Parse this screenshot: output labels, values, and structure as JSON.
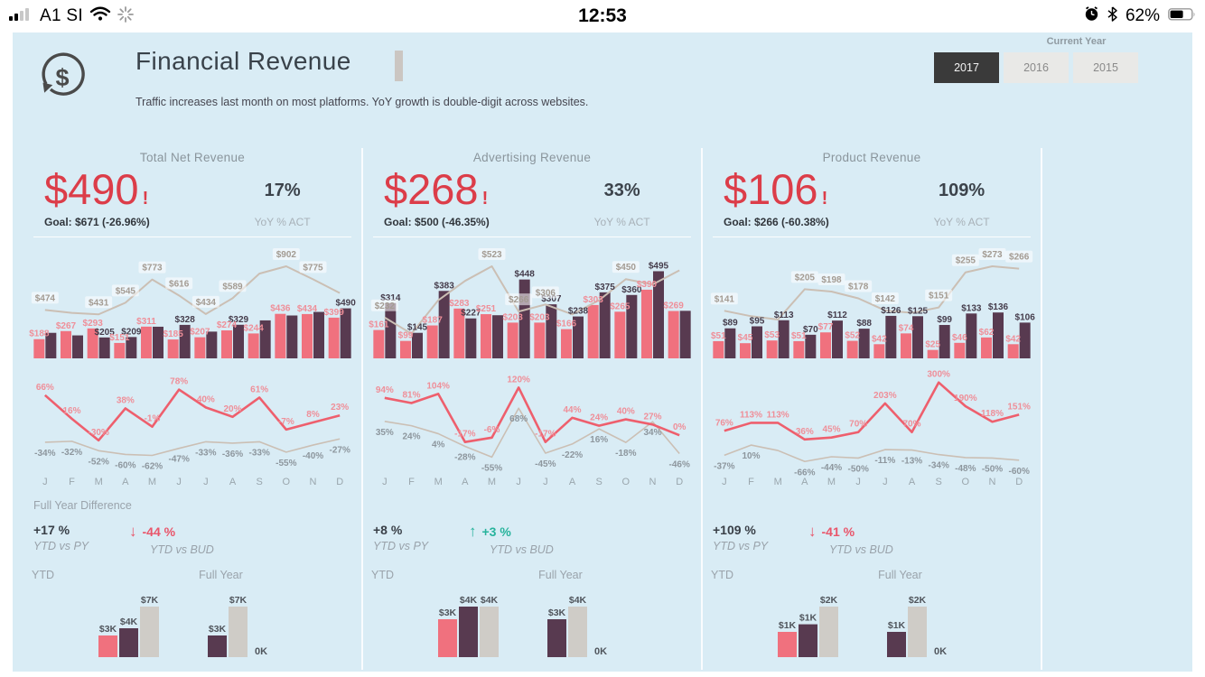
{
  "status_bar": {
    "signal_icon": "signal-bars",
    "carrier": "A1 SI",
    "wifi_icon": "wifi",
    "spinner_icon": "activity-spinner",
    "time": "12:53",
    "alarm_icon": "alarm-clock",
    "bluetooth_icon": "bluetooth",
    "battery_percent": "62%",
    "battery_icon": "battery"
  },
  "header": {
    "logo_icon": "refresh-dollar-icon",
    "title": "Financial Revenue",
    "subtitle": "Traffic increases last month on most platforms. YoY growth is double-digit across websites.",
    "slicer_label": "Current Year",
    "years": [
      "2017",
      "2016",
      "2015"
    ],
    "selected_year": "2017"
  },
  "colors": {
    "background": "#d9ecf5",
    "accent_red": "#dc3d49",
    "pink_bar": "#f0717e",
    "dark_bar": "#583a50",
    "gray_bar": "#cfccc7",
    "tan_line": "#cbbfb4",
    "red_line": "#ee5f6d",
    "pink_label": "#ef8f99",
    "dark_label": "#453c4b",
    "tan_label": "#a39b92",
    "gray_pct_label": "#8d969d",
    "teal": "#27b39c"
  },
  "months": [
    "J",
    "F",
    "M",
    "A",
    "M",
    "J",
    "J",
    "A",
    "S",
    "O",
    "N",
    "D"
  ],
  "chart_data": "see panels[].combo (actual vs prior bars + prior-year line, $) and panels[].pct (YoY % lines)",
  "panels": [
    {
      "title": "Total Net Revenue",
      "kpi": "$490",
      "kpi_alert": "!",
      "goal": "Goal: $671 (-26.96%)",
      "yoy": "17%",
      "yoy_label": "YoY % ACT",
      "combo": {
        "type": "bar+line",
        "pink": {
          "values": [
            188,
            267,
            293,
            151,
            311,
            185,
            207,
            274,
            244,
            436,
            434,
            399
          ],
          "labels": [
            "$188",
            "$267",
            "$293",
            "$151",
            "$311",
            "$185",
            "$207",
            "$274",
            "$244",
            "$436",
            "$434",
            "$399"
          ]
        },
        "dark": {
          "values": [
            250,
            225,
            205,
            209,
            310,
            328,
            262,
            329,
            372,
            420,
            455,
            490
          ],
          "labels": [
            null,
            null,
            "$205",
            "$209",
            null,
            "$328",
            null,
            "$329",
            null,
            null,
            null,
            "$490"
          ]
        },
        "line": {
          "values": [
            474,
            445,
            431,
            545,
            773,
            616,
            434,
            589,
            830,
            902,
            775,
            640
          ],
          "labels": [
            "$474",
            null,
            "$431",
            "$545",
            "$773",
            "$616",
            "$434",
            "$589",
            null,
            "$902",
            "$775",
            null
          ]
        }
      },
      "pct": {
        "type": "line",
        "red": {
          "values": [
            66,
            16,
            -30,
            38,
            -1,
            78,
            40,
            20,
            61,
            -7,
            8,
            23
          ],
          "labels": [
            "66%",
            "16%",
            "-30%",
            "38%",
            "-1%",
            "78%",
            "40%",
            "20%",
            "61%",
            "-7%",
            "8%",
            "23%"
          ]
        },
        "gray": {
          "values": [
            -34,
            -32,
            -52,
            -60,
            -62,
            -47,
            -33,
            -36,
            -33,
            -55,
            -40,
            -27
          ],
          "labels": [
            "-34%",
            "-32%",
            "-52%",
            "-60%",
            "-62%",
            "-47%",
            "-33%",
            "-36%",
            "-33%",
            "-55%",
            "-40%",
            "-27%"
          ]
        }
      },
      "diff_heading": "Full Year Difference",
      "stats": [
        {
          "value": "+17 %",
          "label": "YTD vs PY",
          "arrow": ""
        },
        {
          "value": "-44 %",
          "label": "YTD vs BUD",
          "arrow": "↓"
        }
      ],
      "ytd": {
        "label": "YTD",
        "bars": [
          {
            "color": "pink",
            "value": 3,
            "label": "$3K"
          },
          {
            "color": "dark",
            "value": 4,
            "label": "$4K"
          },
          {
            "color": "gray",
            "value": 7,
            "label": "$7K"
          }
        ]
      },
      "full_year": {
        "label": "Full Year",
        "bars": [
          {
            "color": "dark",
            "value": 3,
            "label": "$3K"
          },
          {
            "color": "gray",
            "value": 7,
            "label": "$7K"
          }
        ],
        "axis_label": "0K"
      }
    },
    {
      "title": "Advertising Revenue",
      "kpi": "$268",
      "kpi_alert": "!",
      "goal": "Goal: $500 (-46.35%)",
      "yoy": "33%",
      "yoy_label": "YoY % ACT",
      "combo": {
        "type": "bar+line",
        "pink": {
          "values": [
            161,
            99,
            187,
            283,
            251,
            203,
            203,
            166,
            303,
            265,
            390,
            269
          ],
          "labels": [
            "$161",
            "$99",
            "$187",
            "$283",
            "$251",
            "$203",
            "$203",
            "$166",
            "$303",
            "$265",
            "$390",
            "$269"
          ]
        },
        "dark": {
          "values": [
            314,
            145,
            383,
            227,
            245,
            448,
            307,
            238,
            375,
            360,
            495,
            270
          ],
          "labels": [
            "$314",
            "$145",
            "$383",
            "$227",
            null,
            "$448",
            "$307",
            "$238",
            "$375",
            "$360",
            "$495",
            null
          ]
        },
        "line": {
          "values": [
            232,
            140,
            330,
            440,
            523,
            266,
            306,
            250,
            330,
            450,
            420,
            500
          ],
          "labels": [
            "$232",
            null,
            null,
            null,
            "$523",
            "$266",
            "$306",
            null,
            null,
            "$450",
            null,
            null
          ]
        }
      },
      "pct": {
        "type": "line",
        "red": {
          "values": [
            94,
            81,
            104,
            -17,
            -6,
            120,
            -17,
            44,
            24,
            40,
            27,
            0
          ],
          "labels": [
            "94%",
            "81%",
            "104%",
            "-17%",
            "-6%",
            "120%",
            "-17%",
            "44%",
            "24%",
            "40%",
            "27%",
            "0%"
          ]
        },
        "gray": {
          "values": [
            35,
            24,
            4,
            -28,
            -55,
            68,
            -45,
            -22,
            16,
            -18,
            34,
            -46
          ],
          "labels": [
            "35%",
            "24%",
            "4%",
            "-28%",
            "-55%",
            "68%",
            "-45%",
            "-22%",
            "16%",
            "-18%",
            "34%",
            "-46%"
          ]
        }
      },
      "diff_heading": "",
      "stats": [
        {
          "value": "+8 %",
          "label": "YTD vs PY",
          "arrow": ""
        },
        {
          "value": "+3 %",
          "label": "YTD vs BUD",
          "arrow": "↑"
        }
      ],
      "ytd": {
        "label": "YTD",
        "bars": [
          {
            "color": "pink",
            "value": 3,
            "label": "$3K"
          },
          {
            "color": "dark",
            "value": 4,
            "label": "$4K"
          },
          {
            "color": "gray",
            "value": 4,
            "label": "$4K"
          }
        ]
      },
      "full_year": {
        "label": "Full Year",
        "bars": [
          {
            "color": "dark",
            "value": 3,
            "label": "$3K"
          },
          {
            "color": "gray",
            "value": 4,
            "label": "$4K"
          }
        ],
        "axis_label": "0K"
      }
    },
    {
      "title": "Product Revenue",
      "kpi": "$106",
      "kpi_alert": "!",
      "goal": "Goal: $266 (-60.38%)",
      "yoy": "109%",
      "yoy_label": "YoY % ACT",
      "combo": {
        "type": "bar+line",
        "pink": {
          "values": [
            51,
            45,
            53,
            51,
            77,
            52,
            42,
            74,
            25,
            46,
            62,
            42
          ],
          "labels": [
            "$51",
            "$45",
            "$53",
            "$51",
            "$77",
            "$52",
            "$42",
            "$74",
            "$25",
            "$46",
            "$62",
            "$42"
          ]
        },
        "dark": {
          "values": [
            89,
            95,
            113,
            70,
            112,
            88,
            126,
            125,
            99,
            133,
            136,
            106
          ],
          "labels": [
            "$89",
            "$95",
            "$113",
            "$70",
            "$112",
            "$88",
            "$126",
            "$125",
            "$99",
            "$133",
            "$136",
            "$106"
          ]
        },
        "line": {
          "values": [
            141,
            125,
            115,
            205,
            198,
            178,
            142,
            135,
            151,
            255,
            273,
            266
          ],
          "labels": [
            "$141",
            null,
            null,
            "$205",
            "$198",
            "$178",
            "$142",
            null,
            "$151",
            "$255",
            "$273",
            "$266"
          ]
        }
      },
      "pct": {
        "type": "line",
        "red": {
          "values": [
            76,
            113,
            113,
            36,
            45,
            70,
            203,
            70,
            300,
            190,
            118,
            151
          ],
          "labels": [
            "76%",
            "113%",
            "113%",
            "36%",
            "45%",
            "70%",
            "203%",
            "70%",
            "300%",
            "190%",
            "118%",
            "151%"
          ]
        },
        "gray": {
          "values": [
            -37,
            10,
            -15,
            -66,
            -44,
            -50,
            -11,
            -13,
            -34,
            -48,
            -50,
            -60
          ],
          "labels": [
            "-37%",
            "10%",
            null,
            "-66%",
            "-44%",
            "-50%",
            "-11%",
            "-13%",
            "-34%",
            "-48%",
            "-50%",
            "-60%"
          ]
        }
      },
      "diff_heading": "",
      "stats": [
        {
          "value": "+109 %",
          "label": "YTD vs PY",
          "arrow": ""
        },
        {
          "value": "-41 %",
          "label": "YTD vs BUD",
          "arrow": "↓"
        }
      ],
      "ytd": {
        "label": "YTD",
        "bars": [
          {
            "color": "pink",
            "value": 1,
            "label": "$1K"
          },
          {
            "color": "dark",
            "value": 1.3,
            "label": "$1K"
          },
          {
            "color": "gray",
            "value": 2,
            "label": "$2K"
          }
        ]
      },
      "full_year": {
        "label": "Full Year",
        "bars": [
          {
            "color": "dark",
            "value": 1,
            "label": "$1K"
          },
          {
            "color": "gray",
            "value": 2,
            "label": "$2K"
          }
        ],
        "axis_label": "0K"
      }
    }
  ]
}
